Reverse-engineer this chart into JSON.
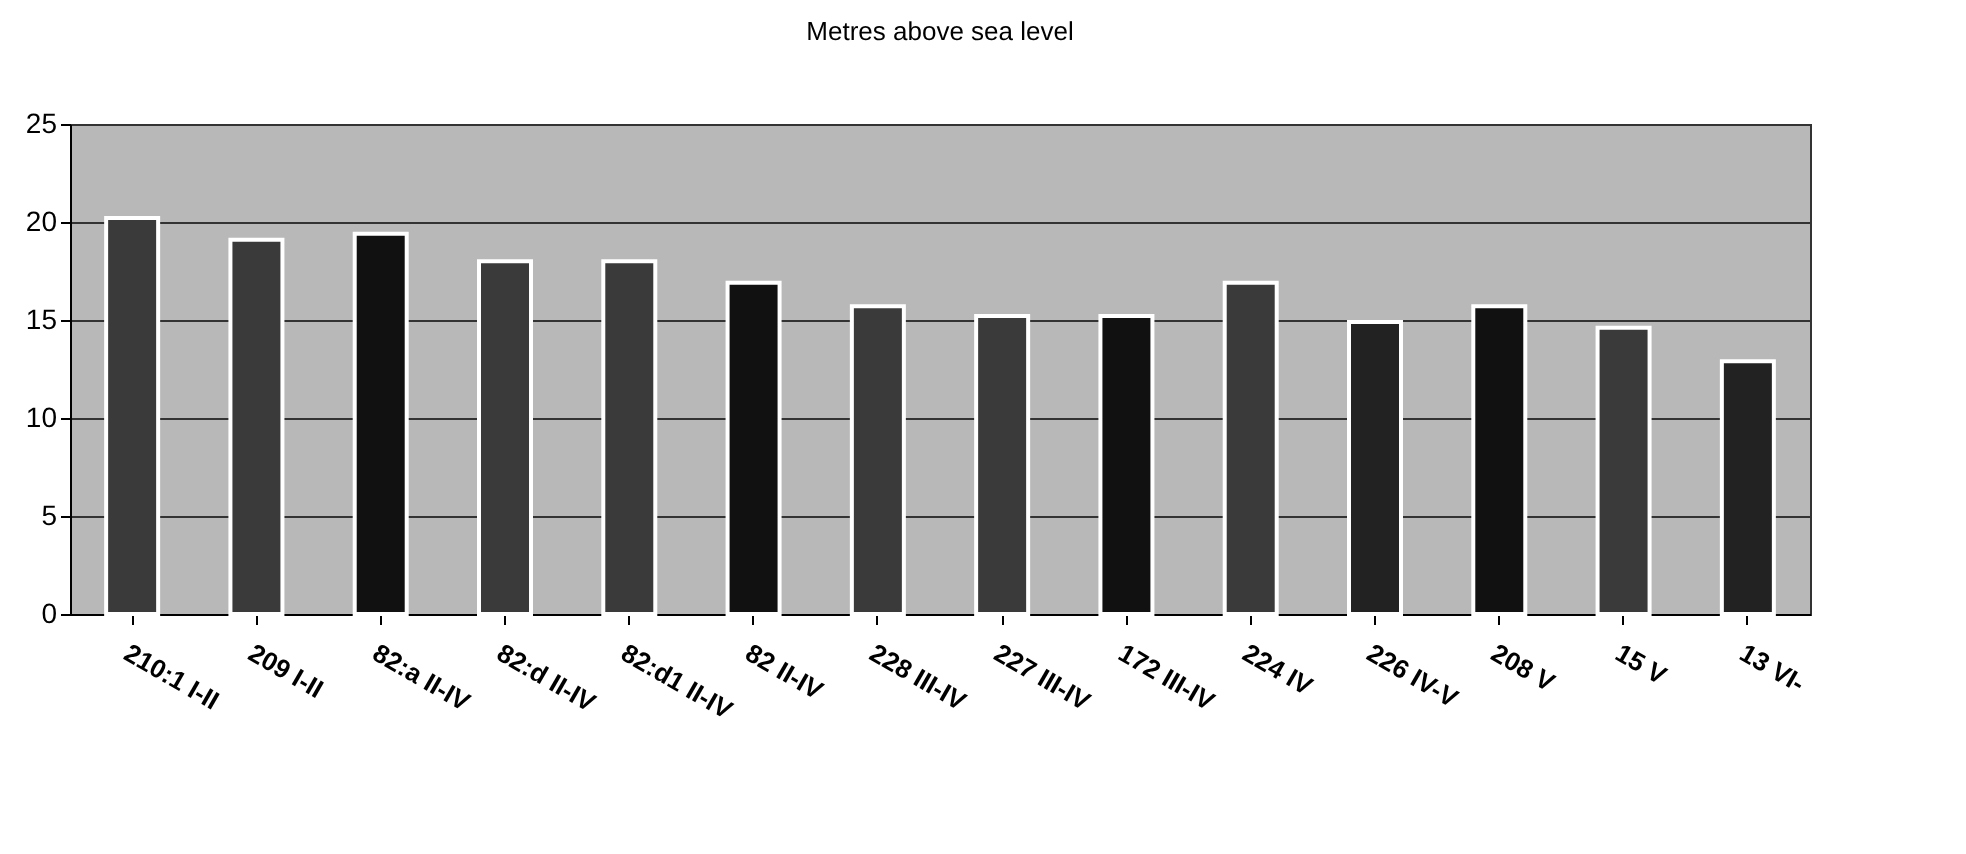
{
  "chart_data": {
    "type": "bar",
    "title": "Metres above sea level",
    "categories": [
      "210:1 I-II",
      "209 I-II",
      "82:a II-IV",
      "82:d II-IV",
      "82:d1 II-IV",
      "82 II-IV",
      "228 III-IV",
      "227 III-IV",
      "172 III-IV",
      "224 IV",
      "226 IV-V",
      "208 V",
      "15 V",
      "13 VI-"
    ],
    "values": [
      20.2,
      19.1,
      19.4,
      18.0,
      18.0,
      16.9,
      15.7,
      15.2,
      15.2,
      16.9,
      14.9,
      15.7,
      14.6,
      12.9
    ],
    "colors": [
      "#3a3a3a",
      "#3a3a3a",
      "#111111",
      "#3a3a3a",
      "#3a3a3a",
      "#111111",
      "#3a3a3a",
      "#3a3a3a",
      "#111111",
      "#3a3a3a",
      "#222222",
      "#111111",
      "#3a3a3a",
      "#222222"
    ],
    "ylim": [
      0,
      25
    ],
    "yticks": [
      0,
      5,
      10,
      15,
      20,
      25
    ],
    "grid": "y"
  }
}
